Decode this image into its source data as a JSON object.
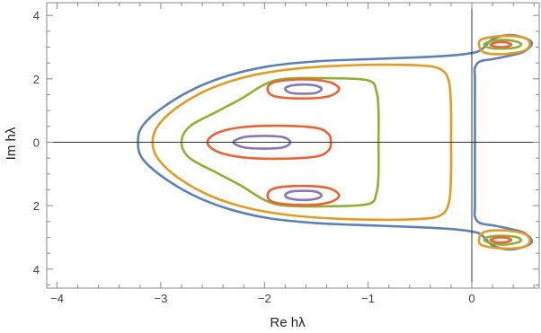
{
  "chart_data": {
    "type": "contour",
    "xlabel": "Re hλ",
    "ylabel": "Im hλ",
    "xlim": [
      -4.1,
      0.65
    ],
    "ylim": [
      -4.6,
      4.4
    ],
    "xticks": [
      -4,
      -3,
      -2,
      -1,
      0
    ],
    "yticks": [
      -4,
      -2,
      0,
      2,
      4
    ],
    "xtick_labels": [
      "−4",
      "−3",
      "−2",
      "−1",
      "0"
    ],
    "ytick_labels": [
      "4",
      "2",
      "0",
      "2",
      "4"
    ],
    "grid": false,
    "zero_axes": true,
    "colors": {
      "blue": "#5e81b5",
      "orange": "#e19c24",
      "green": "#8fb032",
      "red": "#eb6235",
      "purple": "#8778b3"
    },
    "contours": [
      {
        "color": "blue",
        "paths": [
          [
            [
              -3.22,
              0
            ],
            [
              -3.18,
              0.5
            ],
            [
              -3.0,
              1.05
            ],
            [
              -2.7,
              1.65
            ],
            [
              -2.35,
              2.1
            ],
            [
              -1.95,
              2.4
            ],
            [
              -1.5,
              2.55
            ],
            [
              -1.0,
              2.62
            ],
            [
              -0.5,
              2.68
            ],
            [
              -0.15,
              2.75
            ],
            [
              0.05,
              2.85
            ],
            [
              0.12,
              3.0
            ],
            [
              0.2,
              3.25
            ],
            [
              0.35,
              3.38
            ],
            [
              0.5,
              3.3
            ],
            [
              0.58,
              3.12
            ],
            [
              0.5,
              2.85
            ],
            [
              0.35,
              2.72
            ],
            [
              0.2,
              2.62
            ],
            [
              0.08,
              2.55
            ],
            [
              0.03,
              2.35
            ],
            [
              0.03,
              2.0
            ],
            [
              0.03,
              1.0
            ],
            [
              0.03,
              0
            ],
            [
              0.03,
              -1.0
            ],
            [
              0.03,
              -2.0
            ],
            [
              0.03,
              -2.35
            ],
            [
              0.08,
              -2.55
            ],
            [
              0.2,
              -2.62
            ],
            [
              0.35,
              -2.72
            ],
            [
              0.5,
              -2.85
            ],
            [
              0.58,
              -3.12
            ],
            [
              0.5,
              -3.3
            ],
            [
              0.35,
              -3.38
            ],
            [
              0.2,
              -3.25
            ],
            [
              0.12,
              -3.0
            ],
            [
              0.05,
              -2.85
            ],
            [
              -0.15,
              -2.75
            ],
            [
              -0.5,
              -2.68
            ],
            [
              -1.0,
              -2.62
            ],
            [
              -1.5,
              -2.55
            ],
            [
              -1.95,
              -2.4
            ],
            [
              -2.35,
              -2.1
            ],
            [
              -2.7,
              -1.65
            ],
            [
              -3.0,
              -1.05
            ],
            [
              -3.18,
              -0.5
            ],
            [
              -3.22,
              0
            ]
          ]
        ]
      },
      {
        "color": "orange",
        "paths": [
          [
            [
              -3.08,
              0
            ],
            [
              -3.02,
              0.55
            ],
            [
              -2.82,
              1.15
            ],
            [
              -2.5,
              1.72
            ],
            [
              -2.1,
              2.12
            ],
            [
              -1.6,
              2.35
            ],
            [
              -1.0,
              2.44
            ],
            [
              -0.5,
              2.42
            ],
            [
              -0.3,
              2.3
            ],
            [
              -0.22,
              1.9
            ],
            [
              -0.2,
              1.0
            ],
            [
              -0.2,
              0
            ],
            [
              -0.2,
              -1.0
            ],
            [
              -0.22,
              -1.9
            ],
            [
              -0.3,
              -2.3
            ],
            [
              -0.5,
              -2.42
            ],
            [
              -1.0,
              -2.44
            ],
            [
              -1.6,
              -2.35
            ],
            [
              -2.1,
              -2.12
            ],
            [
              -2.5,
              -1.72
            ],
            [
              -2.82,
              -1.15
            ],
            [
              -3.02,
              -0.55
            ],
            [
              -3.08,
              0
            ]
          ],
          [
            [
              0.07,
              3.05
            ],
            [
              0.1,
              3.25
            ],
            [
              0.3,
              3.35
            ],
            [
              0.5,
              3.3
            ],
            [
              0.56,
              3.1
            ],
            [
              0.5,
              2.88
            ],
            [
              0.3,
              2.78
            ],
            [
              0.12,
              2.83
            ],
            [
              0.07,
              3.05
            ]
          ],
          [
            [
              0.07,
              -3.05
            ],
            [
              0.1,
              -3.25
            ],
            [
              0.3,
              -3.35
            ],
            [
              0.5,
              -3.3
            ],
            [
              0.56,
              -3.1
            ],
            [
              0.5,
              -2.88
            ],
            [
              0.3,
              -2.78
            ],
            [
              0.12,
              -2.83
            ],
            [
              0.07,
              -3.05
            ]
          ]
        ]
      },
      {
        "color": "green",
        "paths": [
          [
            [
              -2.8,
              0
            ],
            [
              -2.72,
              0.5
            ],
            [
              -2.45,
              0.98
            ],
            [
              -2.22,
              1.38
            ],
            [
              -2.0,
              1.82
            ],
            [
              -1.8,
              2.0
            ],
            [
              -1.4,
              2.02
            ],
            [
              -1.0,
              1.95
            ],
            [
              -0.92,
              1.6
            ],
            [
              -0.9,
              1.0
            ],
            [
              -0.9,
              0
            ],
            [
              -0.9,
              -1.0
            ],
            [
              -0.92,
              -1.6
            ],
            [
              -1.0,
              -1.95
            ],
            [
              -1.4,
              -2.02
            ],
            [
              -1.8,
              -2.0
            ],
            [
              -2.0,
              -1.82
            ],
            [
              -2.22,
              -1.38
            ],
            [
              -2.45,
              -0.98
            ],
            [
              -2.72,
              -0.5
            ],
            [
              -2.8,
              0
            ]
          ],
          [
            [
              0.12,
              3.08
            ],
            [
              0.2,
              3.2
            ],
            [
              0.35,
              3.22
            ],
            [
              0.47,
              3.12
            ],
            [
              0.44,
              3.0
            ],
            [
              0.3,
              2.95
            ],
            [
              0.17,
              2.98
            ],
            [
              0.12,
              3.08
            ]
          ],
          [
            [
              0.12,
              -3.08
            ],
            [
              0.2,
              -3.2
            ],
            [
              0.35,
              -3.22
            ],
            [
              0.47,
              -3.12
            ],
            [
              0.44,
              -3.0
            ],
            [
              0.3,
              -2.95
            ],
            [
              0.17,
              -2.98
            ],
            [
              0.12,
              -3.08
            ]
          ]
        ]
      },
      {
        "color": "red",
        "paths": [
          [
            [
              -2.55,
              0
            ],
            [
              -2.45,
              0.3
            ],
            [
              -2.2,
              0.48
            ],
            [
              -1.85,
              0.52
            ],
            [
              -1.5,
              0.45
            ],
            [
              -1.38,
              0.25
            ],
            [
              -1.36,
              0
            ],
            [
              -1.38,
              -0.25
            ],
            [
              -1.5,
              -0.45
            ],
            [
              -1.85,
              -0.52
            ],
            [
              -2.2,
              -0.48
            ],
            [
              -2.45,
              -0.3
            ],
            [
              -2.55,
              0
            ]
          ],
          [
            [
              -1.97,
              1.68
            ],
            [
              -1.9,
              1.9
            ],
            [
              -1.63,
              1.98
            ],
            [
              -1.38,
              1.9
            ],
            [
              -1.28,
              1.68
            ],
            [
              -1.38,
              1.45
            ],
            [
              -1.63,
              1.38
            ],
            [
              -1.9,
              1.45
            ],
            [
              -1.97,
              1.68
            ]
          ],
          [
            [
              -1.97,
              -1.68
            ],
            [
              -1.9,
              -1.9
            ],
            [
              -1.63,
              -1.98
            ],
            [
              -1.38,
              -1.9
            ],
            [
              -1.28,
              -1.68
            ],
            [
              -1.38,
              -1.45
            ],
            [
              -1.63,
              -1.38
            ],
            [
              -1.9,
              -1.45
            ],
            [
              -1.97,
              -1.68
            ]
          ],
          [
            [
              0.18,
              3.08
            ],
            [
              0.24,
              3.15
            ],
            [
              0.33,
              3.15
            ],
            [
              0.38,
              3.08
            ],
            [
              0.33,
              3.01
            ],
            [
              0.24,
              3.01
            ],
            [
              0.18,
              3.08
            ]
          ],
          [
            [
              0.18,
              -3.08
            ],
            [
              0.24,
              -3.15
            ],
            [
              0.33,
              -3.15
            ],
            [
              0.38,
              -3.08
            ],
            [
              0.33,
              -3.01
            ],
            [
              0.24,
              -3.01
            ],
            [
              0.18,
              -3.08
            ]
          ]
        ]
      },
      {
        "color": "purple",
        "paths": [
          [
            [
              -2.3,
              0
            ],
            [
              -2.2,
              0.16
            ],
            [
              -2.0,
              0.2
            ],
            [
              -1.82,
              0.16
            ],
            [
              -1.75,
              0
            ],
            [
              -1.82,
              -0.16
            ],
            [
              -2.0,
              -0.2
            ],
            [
              -2.2,
              -0.16
            ],
            [
              -2.3,
              0
            ]
          ],
          [
            [
              -1.8,
              1.68
            ],
            [
              -1.75,
              1.78
            ],
            [
              -1.62,
              1.82
            ],
            [
              -1.5,
              1.78
            ],
            [
              -1.45,
              1.68
            ],
            [
              -1.5,
              1.56
            ],
            [
              -1.62,
              1.53
            ],
            [
              -1.75,
              1.56
            ],
            [
              -1.8,
              1.68
            ]
          ],
          [
            [
              -1.8,
              -1.68
            ],
            [
              -1.75,
              -1.78
            ],
            [
              -1.62,
              -1.82
            ],
            [
              -1.5,
              -1.78
            ],
            [
              -1.45,
              -1.68
            ],
            [
              -1.5,
              -1.56
            ],
            [
              -1.62,
              -1.53
            ],
            [
              -1.75,
              -1.56
            ],
            [
              -1.8,
              -1.68
            ]
          ]
        ]
      }
    ]
  }
}
